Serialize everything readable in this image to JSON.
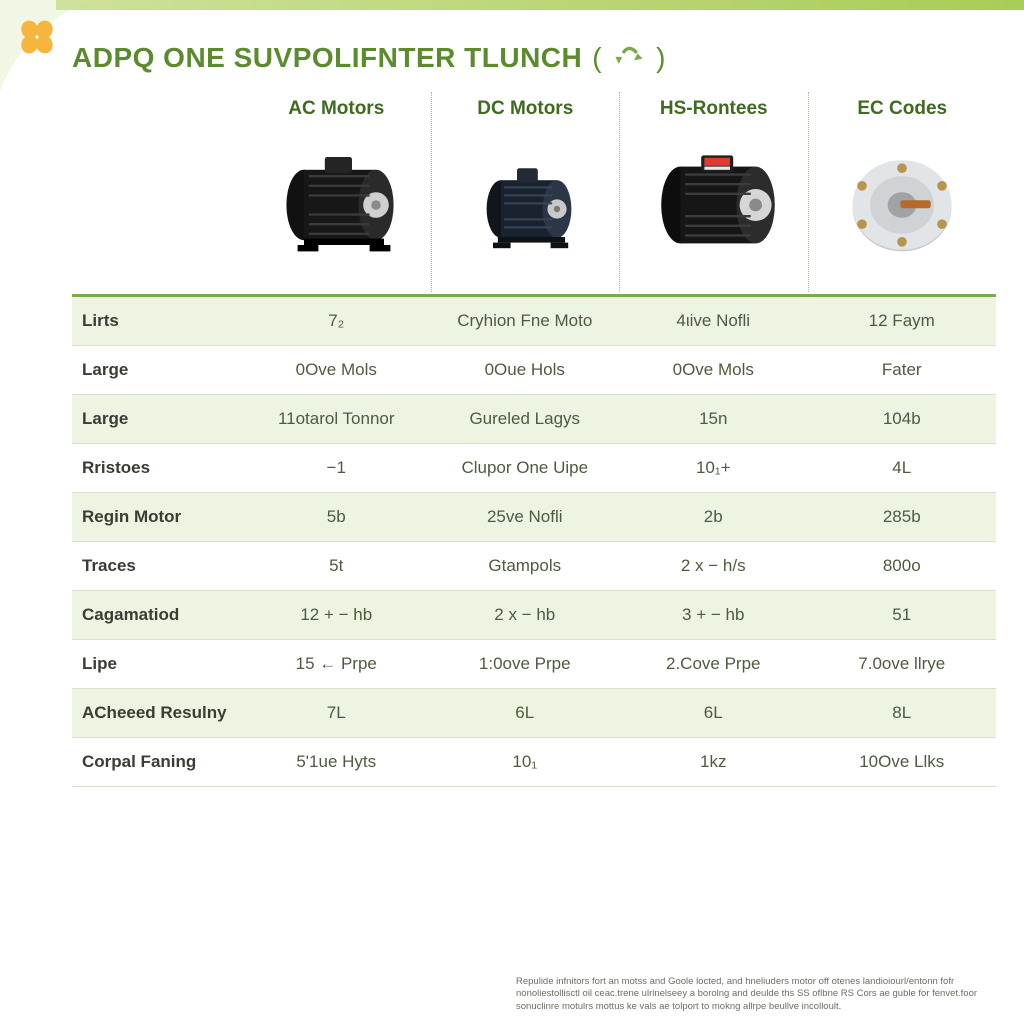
{
  "brand": {
    "accent_color": "#5c8a2f",
    "logo_petal_color": "#f4b63f",
    "top_bar_gradient": [
      "#cde29a",
      "#a8cc58"
    ]
  },
  "title": {
    "text_main": "ADPQ ONE SUVPOLIFNTER TLUNCH",
    "paren_open": "(",
    "paren_close": ")",
    "paren_label": "G1"
  },
  "table": {
    "type": "table",
    "background_color": "#ffffff",
    "stripe_color": "#eef4e2",
    "header_divider_color": "#7aa94f",
    "row_border_color": "#d9e0ce",
    "label_text_color": "#3a3d34",
    "cell_text_color": "#4e5b3f",
    "column_title_color": "#3f6a1f",
    "label_fontsize": 17,
    "cell_fontsize": 17,
    "col_widths": [
      "170px",
      "1fr",
      "1fr",
      "1fr",
      "1fr"
    ],
    "columns": [
      {
        "key": "ac",
        "title": "AC Motors",
        "motor_icon": "ac-motor"
      },
      {
        "key": "dc",
        "title": "DC Motors",
        "motor_icon": "dc-motor"
      },
      {
        "key": "hs",
        "title": "HS-Rontees",
        "motor_icon": "hs-motor"
      },
      {
        "key": "ec",
        "title": "EC Codes",
        "motor_icon": "ec-motor"
      }
    ],
    "rows": [
      {
        "label": "Lirts",
        "striped": true,
        "cells": [
          "7₂",
          "Cryhion Fne Moto",
          "4ιive Nofli",
          "12 Faym"
        ]
      },
      {
        "label": "Large",
        "striped": false,
        "cells": [
          "0Ove Mols",
          "0Oue Hols",
          "0Ove Mols",
          "Fater"
        ]
      },
      {
        "label": "Large",
        "striped": true,
        "cells": [
          "11otarol Tonnor",
          "Gureled Lagys",
          "15n",
          "104b"
        ]
      },
      {
        "label": "Rristoes",
        "striped": false,
        "cells": [
          "−1",
          "Clupor One Uipe",
          "10₁+",
          "4L"
        ]
      },
      {
        "label": "Regin Motor",
        "striped": true,
        "cells": [
          "5b",
          "25ve Nofli",
          "2b",
          "285b"
        ]
      },
      {
        "label": "Traces",
        "striped": false,
        "cells": [
          "5t",
          "Gtampols",
          "2 x − h/s",
          "800o"
        ]
      },
      {
        "label": "Cagamatiod",
        "striped": true,
        "cells": [
          "12 + − hb",
          "2 x − hb",
          "3 + − hb",
          "51"
        ]
      },
      {
        "label": "Lipe",
        "striped": false,
        "cells": [
          "15 ← Prpe",
          "1:0ove Prpe",
          "2.Cove Prpe",
          "7.0ove llrye"
        ]
      },
      {
        "label": "ACheeed Resulny",
        "striped": true,
        "cells": [
          "7L",
          "6L",
          "6L",
          "8L"
        ]
      },
      {
        "label": "Corpal Faning",
        "striped": false,
        "cells": [
          "5'1ue Hyts",
          "10₁",
          "1kz",
          "10Ove Llks"
        ]
      }
    ]
  },
  "footnote": "Repulide infnitors fort an motss and Goole locted, and hneliuders motor off otenes landioiourl/entonn fofr nonoliestollisctl oil ceac.trene ulrinelseey a borolng and deulde ths SS oflbne RS Cors ae guble for fenvet.foor sonuclinre motulrs mottus ke vals ae tolport to mokng allrpe beullve incolloult."
}
